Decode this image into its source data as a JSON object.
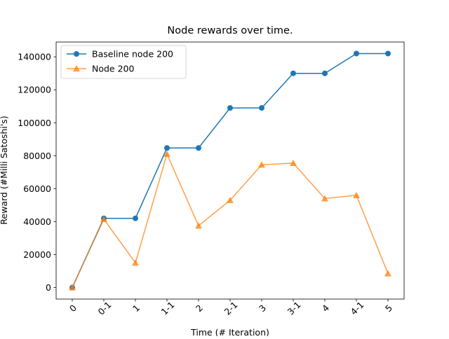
{
  "chart_data": {
    "type": "line",
    "title": "Node rewards over time.",
    "xlabel": "Time (# Iteration)",
    "ylabel": "Reward (#Milli Satoshi's)",
    "categories": [
      "0",
      "0-1",
      "1",
      "1-1",
      "2",
      "2-1",
      "3",
      "3-1",
      "4",
      "4-1",
      "5"
    ],
    "ylim": [
      -7000,
      149000
    ],
    "yticks": [
      0,
      20000,
      40000,
      60000,
      80000,
      100000,
      120000,
      140000
    ],
    "grid": false,
    "legend_position": "upper-left",
    "series": [
      {
        "name": "Baseline node 200",
        "color": "#1f77b4",
        "marker": "circle",
        "values": [
          0,
          42000,
          42000,
          84700,
          84700,
          109000,
          109000,
          130000,
          130000,
          142000,
          142000
        ]
      },
      {
        "name": "Node 200",
        "color": "#ff7f0e",
        "marker": "triangle",
        "values": [
          0,
          41500,
          15000,
          81000,
          37500,
          53000,
          74500,
          75500,
          54000,
          56000,
          8500
        ]
      }
    ]
  }
}
